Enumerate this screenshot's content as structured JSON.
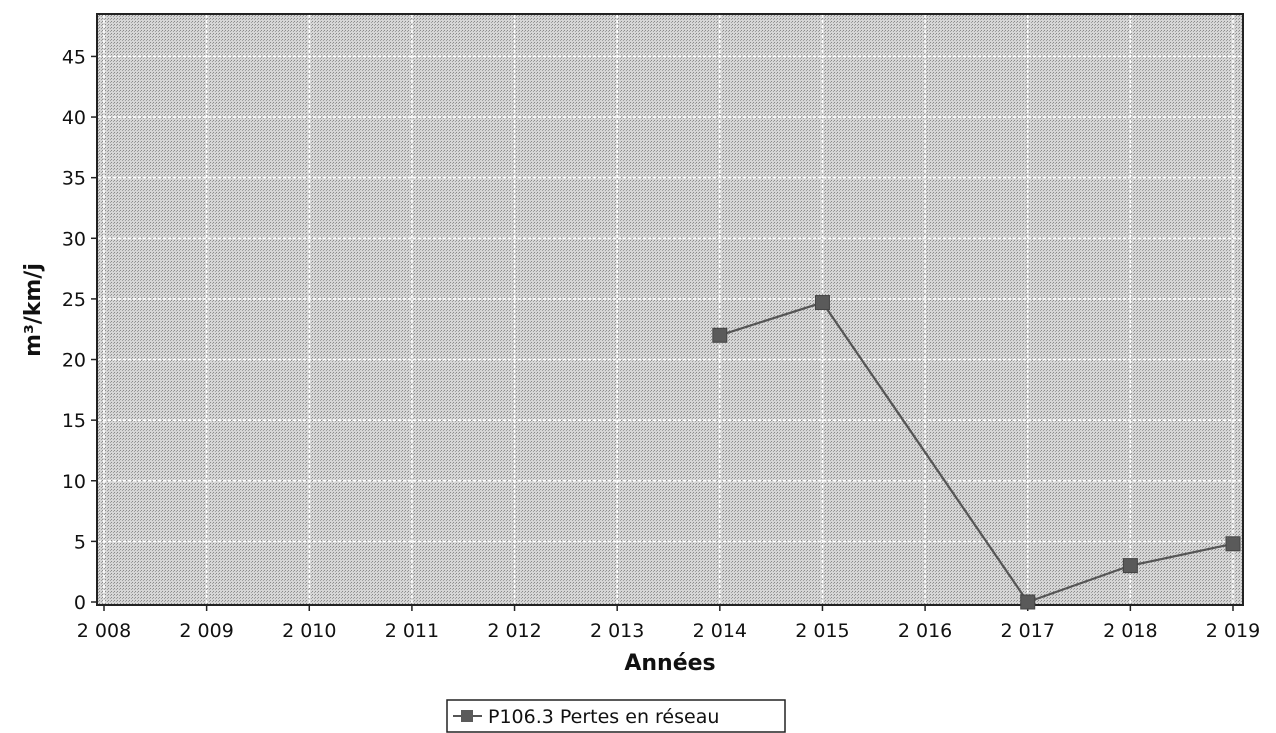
{
  "chart_data": {
    "type": "line",
    "title": "",
    "xlabel": "Années",
    "ylabel": "m³/km/j",
    "categories": [
      "2 008",
      "2 009",
      "2 010",
      "2 011",
      "2 012",
      "2 013",
      "2 014",
      "2 015",
      "2 016",
      "2 017",
      "2 018",
      "2 019"
    ],
    "x": [
      2008,
      2009,
      2010,
      2011,
      2012,
      2013,
      2014,
      2015,
      2016,
      2017,
      2018,
      2019
    ],
    "yticks": [
      "0",
      "5",
      "10",
      "15",
      "20",
      "25",
      "30",
      "35",
      "40",
      "45"
    ],
    "ylim": [
      0,
      48.5
    ],
    "grid": true,
    "legend_position": "bottom",
    "series": [
      {
        "name": "P106.3 Pertes en réseau",
        "values": [
          null,
          null,
          null,
          null,
          null,
          null,
          22.0,
          24.7,
          null,
          0,
          3.0,
          4.8
        ]
      }
    ],
    "colors": {
      "plot_background": "#c8c8c8",
      "grid": "#ffffff",
      "series_line": "#555555",
      "series_marker": "#5a5a5a",
      "axis": "#222222"
    }
  }
}
